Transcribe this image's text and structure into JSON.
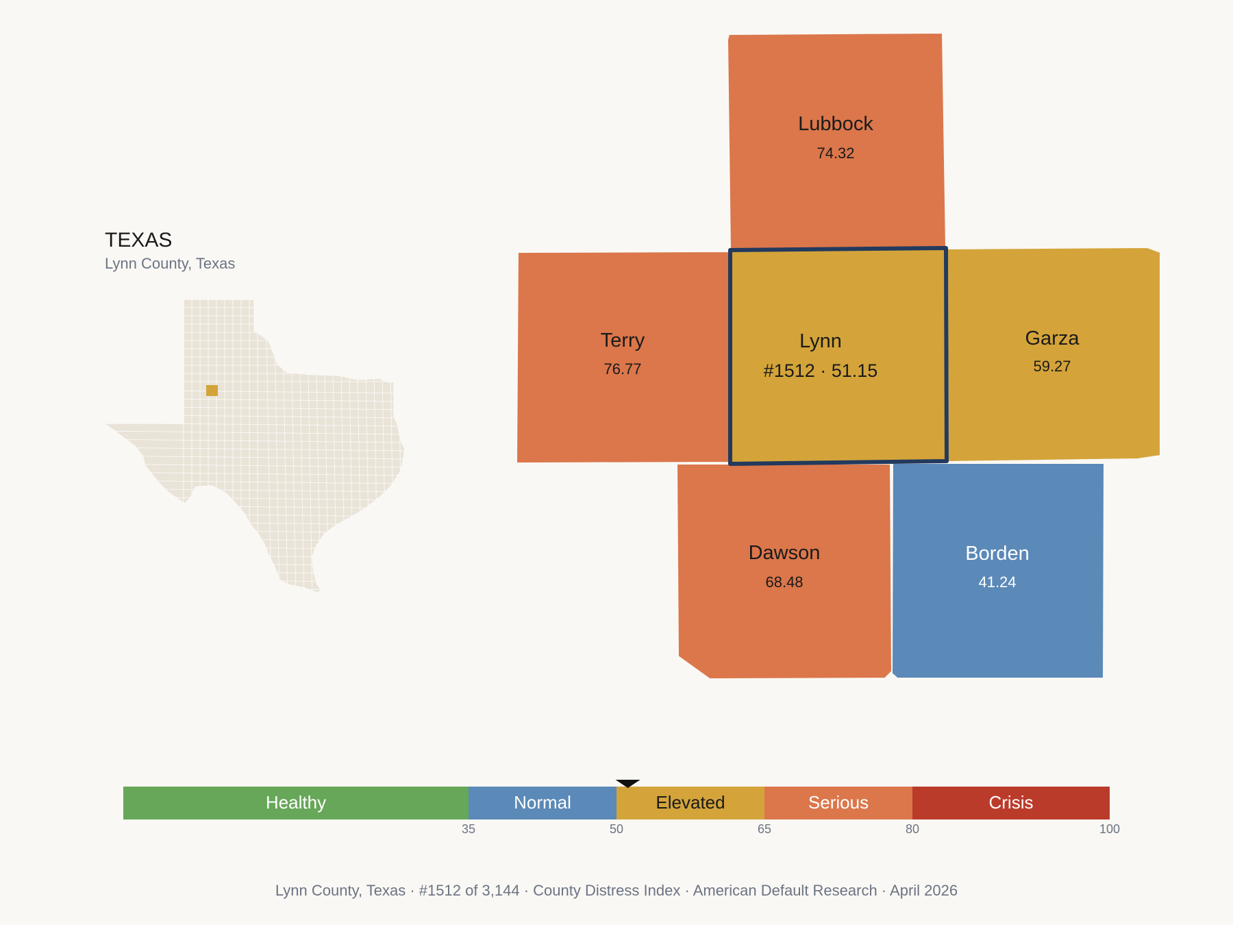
{
  "state": {
    "title": "TEXAS",
    "subtitle": "Lynn County, Texas"
  },
  "counties": [
    {
      "id": "lubbock",
      "name": "Lubbock",
      "value": "74.32",
      "color": "#db774b",
      "text": "#1a1a1a"
    },
    {
      "id": "terry",
      "name": "Terry",
      "value": "76.77",
      "color": "#db774b",
      "text": "#1a1a1a"
    },
    {
      "id": "garza",
      "name": "Garza",
      "value": "59.27",
      "color": "#d4a43a",
      "text": "#1a1a1a"
    },
    {
      "id": "dawson",
      "name": "Dawson",
      "value": "68.48",
      "color": "#db774b",
      "text": "#1a1a1a"
    },
    {
      "id": "borden",
      "name": "Borden",
      "value": "41.24",
      "color": "#5b89b8",
      "text": "#ffffff"
    }
  ],
  "focus": {
    "name": "Lynn",
    "label": "#1512 · 51.15",
    "score": 51.15,
    "color": "#d4a43a",
    "outline": "#233a5e"
  },
  "scale": {
    "min": 0,
    "max": 100,
    "bands": [
      {
        "label": "Healthy",
        "from": 0,
        "to": 35,
        "color": "#67a759",
        "dark": false
      },
      {
        "label": "Normal",
        "from": 35,
        "to": 50,
        "color": "#5b89b8",
        "dark": false
      },
      {
        "label": "Elevated",
        "from": 50,
        "to": 65,
        "color": "#d4a43a",
        "dark": true
      },
      {
        "label": "Serious",
        "from": 65,
        "to": 80,
        "color": "#db774b",
        "dark": false
      },
      {
        "label": "Crisis",
        "from": 80,
        "to": 100,
        "color": "#bb3b2a",
        "dark": false
      }
    ],
    "ticks": [
      "35",
      "50",
      "65",
      "80",
      "100"
    ]
  },
  "inset": {
    "fill": "#e9e3d8",
    "highlight": "#d4a43a"
  },
  "footer": "Lynn County, Texas  ·  #1512 of 3,144  ·  County Distress Index  ·  American Default Research  ·  April 2026"
}
